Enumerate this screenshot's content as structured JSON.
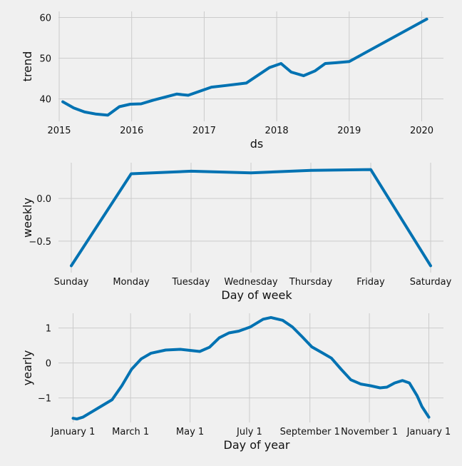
{
  "chart_data": [
    {
      "type": "line",
      "xlabel": "ds",
      "ylabel": "trend",
      "x_ticks": [
        "2015",
        "2016",
        "2017",
        "2018",
        "2019",
        "2020"
      ],
      "y_ticks": [
        "40",
        "50",
        "60"
      ],
      "xlim": [
        2014.99,
        2020.3
      ],
      "ylim": [
        34.5,
        61.5
      ],
      "grid": true,
      "series": [
        {
          "x": [
            2015.05,
            2015.2,
            2015.35,
            2015.5,
            2015.67,
            2015.83,
            2015.98,
            2016.13,
            2016.3,
            2016.62,
            2016.78,
            2017.1,
            2017.3,
            2017.58,
            2017.9,
            2018.06,
            2018.2,
            2018.37,
            2018.53,
            2018.67,
            2018.82,
            2019.0,
            2020.07
          ],
          "values": [
            39.3,
            37.8,
            36.8,
            36.3,
            36.0,
            38.1,
            38.7,
            38.8,
            39.7,
            41.2,
            40.9,
            42.9,
            43.3,
            43.9,
            47.7,
            48.7,
            46.6,
            45.7,
            46.9,
            48.7,
            48.9,
            49.2,
            59.6
          ]
        }
      ]
    },
    {
      "type": "line",
      "xlabel": "Day of week",
      "ylabel": "weekly",
      "categories": [
        "Sunday",
        "Monday",
        "Tuesday",
        "Wednesday",
        "Thursday",
        "Friday",
        "Saturday"
      ],
      "y_ticks": [
        "0.0",
        "−0.5"
      ],
      "ylim": [
        -0.87,
        0.42
      ],
      "grid": true,
      "series": [
        {
          "values": [
            -0.79,
            0.29,
            0.32,
            0.3,
            0.33,
            0.34,
            -0.79
          ]
        }
      ]
    },
    {
      "type": "line",
      "xlabel": "Day of year",
      "ylabel": "yearly",
      "x_ticks": [
        "January 1",
        "March 1",
        "May 1",
        "July 1",
        "September 1",
        "November 1",
        "January 1"
      ],
      "y_ticks": [
        "1",
        "0",
        "−1"
      ],
      "xlim": [
        -15,
        380
      ],
      "ylim": [
        -1.7,
        1.42
      ],
      "grid": true,
      "series": [
        {
          "x": [
            0,
            4,
            10,
            25,
            40,
            50,
            60,
            70,
            80,
            95,
            110,
            120,
            130,
            140,
            150,
            160,
            170,
            182,
            195,
            203,
            215,
            225,
            235,
            245,
            255,
            265,
            275,
            285,
            295,
            305,
            315,
            322,
            330,
            338,
            345,
            353,
            358,
            365
          ],
          "values": [
            -1.58,
            -1.6,
            -1.55,
            -1.3,
            -1.05,
            -0.65,
            -0.18,
            0.12,
            0.28,
            0.37,
            0.39,
            0.36,
            0.33,
            0.45,
            0.72,
            0.86,
            0.91,
            1.03,
            1.25,
            1.3,
            1.22,
            1.03,
            0.75,
            0.46,
            0.3,
            0.14,
            -0.18,
            -0.48,
            -0.6,
            -0.65,
            -0.71,
            -0.69,
            -0.57,
            -0.5,
            -0.57,
            -0.94,
            -1.25,
            -1.55
          ]
        }
      ]
    }
  ]
}
